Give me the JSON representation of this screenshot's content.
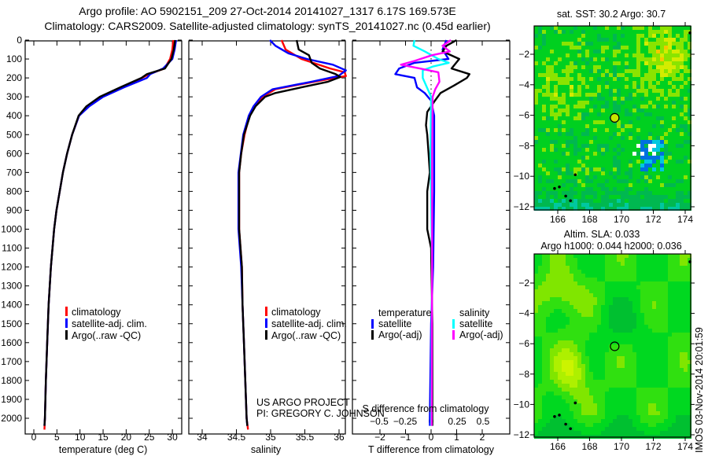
{
  "header": {
    "title_line1": "Argo profile: AO 5902151_209 27-Oct-2014 20141027_1317 6.17S 169.573E",
    "title_line2": "Climatology: CARS2009. Satellite-adjusted climatology: synTS_20141027.nc (0.45d earlier)"
  },
  "credit": {
    "line1": "US ARGO PROJECT",
    "line2": "PI: GREGORY C. JOHNSON"
  },
  "timestamp": "IMOS 03-Nov-2014 20:01:59",
  "colors": {
    "climatology": "#ff0000",
    "satellite": "#0000ff",
    "argo": "#000000",
    "sal_satellite": "#00ffff",
    "sal_argo": "#ff00ff"
  },
  "chart_data": [
    {
      "type": "line",
      "xlabel": "temperature (deg C)",
      "ylabel": "",
      "xlim": [
        -1.9,
        32
      ],
      "ylim": [
        2060,
        0
      ],
      "xticks": [
        "0",
        "5",
        "10",
        "15",
        "20",
        "25",
        "30"
      ],
      "yticks": [
        "0",
        "100",
        "200",
        "300",
        "400",
        "500",
        "600",
        "700",
        "800",
        "900",
        "1000",
        "1100",
        "1200",
        "1300",
        "1400",
        "1500",
        "1600",
        "1700",
        "1800",
        "1900",
        "2000"
      ],
      "legend": [
        "climatology",
        "satellite-adj. clim.",
        "Argo(..raw -QC)"
      ],
      "series": [
        {
          "name": "climatology",
          "color": "#ff0000",
          "depth": [
            0,
            50,
            100,
            150,
            180,
            200,
            250,
            300,
            350,
            400,
            500,
            600,
            700,
            800,
            900,
            1000,
            1200,
            1400,
            1600,
            1800,
            2000,
            2060
          ],
          "values": [
            30.2,
            30.0,
            29.5,
            28.3,
            25.0,
            23.4,
            18.9,
            14.6,
            11.6,
            9.8,
            8.3,
            7.2,
            6.3,
            5.6,
            4.9,
            4.4,
            3.7,
            3.2,
            2.9,
            2.6,
            2.4,
            2.3
          ]
        },
        {
          "name": "satellite-adj. clim.",
          "color": "#0000ff",
          "depth": [
            0,
            50,
            100,
            150,
            180,
            200,
            250,
            300,
            350,
            400,
            500,
            600,
            700,
            800,
            900,
            1000,
            1200,
            1400,
            1600,
            1800,
            2000,
            2040
          ],
          "values": [
            30.8,
            30.5,
            30.0,
            28.0,
            25.2,
            24.5,
            19.5,
            15.0,
            12.0,
            9.8,
            8.3,
            7.2,
            6.3,
            5.6,
            4.9,
            4.4,
            3.7,
            3.2,
            2.9,
            2.6,
            2.4,
            2.3
          ]
        },
        {
          "name": "Argo(..raw -QC)",
          "color": "#000000",
          "depth": [
            0,
            50,
            100,
            150,
            180,
            200,
            250,
            300,
            350,
            400,
            500,
            600,
            700,
            800,
            900,
            1000,
            1200,
            1400,
            1600,
            1800,
            2000,
            2040
          ],
          "values": [
            30.6,
            30.3,
            29.8,
            28.4,
            24.5,
            23.3,
            18.7,
            14.3,
            11.4,
            9.7,
            8.3,
            7.2,
            6.3,
            5.6,
            4.9,
            4.4,
            3.7,
            3.2,
            2.9,
            2.6,
            2.4,
            2.3
          ]
        }
      ]
    },
    {
      "type": "line",
      "xlabel": "salinity",
      "xlim": [
        33.8,
        36.1
      ],
      "ylim": [
        2060,
        0
      ],
      "xticks": [
        "34",
        "34.5",
        "35",
        "35.5",
        "36"
      ],
      "legend": [
        "climatology",
        "satellite-adj. clim.",
        "Argo(..raw -QC)"
      ],
      "series": [
        {
          "name": "climatology",
          "color": "#ff0000",
          "depth": [
            0,
            50,
            100,
            150,
            170,
            190,
            220,
            260,
            300,
            350,
            400,
            500,
            600,
            700,
            1000,
            1200,
            1400,
            1600,
            1800,
            2000,
            2060
          ],
          "values": [
            35.16,
            35.22,
            35.45,
            35.87,
            36.08,
            36.1,
            35.64,
            35.07,
            34.88,
            34.76,
            34.69,
            34.62,
            34.57,
            34.54,
            34.54,
            34.58,
            34.59,
            34.61,
            34.63,
            34.65,
            34.67
          ]
        },
        {
          "name": "satellite-adj. clim.",
          "color": "#0000ff",
          "depth": [
            0,
            30,
            70,
            100,
            130,
            160,
            190,
            220,
            260,
            300,
            350,
            400,
            500,
            700,
            1000,
            1200,
            1400,
            1600,
            1800,
            2000,
            2040
          ],
          "values": [
            34.99,
            35.07,
            35.26,
            35.53,
            35.91,
            36.1,
            35.99,
            35.6,
            35.03,
            34.86,
            34.75,
            34.68,
            34.6,
            34.53,
            34.53,
            34.57,
            34.59,
            34.61,
            34.63,
            34.65,
            34.66
          ]
        },
        {
          "name": "Argo(..raw -QC)",
          "color": "#000000",
          "depth": [
            0,
            50,
            80,
            120,
            150,
            180,
            195,
            220,
            250,
            280,
            300,
            350,
            400,
            500,
            600,
            700,
            1000,
            1200,
            1400,
            1600,
            1800,
            2000,
            2040
          ],
          "values": [
            35.38,
            35.41,
            35.56,
            35.6,
            35.72,
            35.95,
            36.02,
            35.84,
            35.45,
            35.07,
            34.92,
            34.78,
            34.7,
            34.61,
            34.57,
            34.54,
            34.54,
            34.58,
            34.59,
            34.61,
            34.63,
            34.65,
            34.66
          ]
        }
      ]
    },
    {
      "type": "line",
      "xlabel": "T difference from climatology",
      "xlabel2": "S difference from climatology",
      "xlim": [
        -3.1,
        3.1
      ],
      "xlim2": [
        -0.76,
        0.76
      ],
      "ylim": [
        2060,
        0
      ],
      "xticks": [
        "-2",
        "-1",
        "0",
        "1",
        "2"
      ],
      "xticks2": [
        "-0.5",
        "-0.25",
        "0",
        "0.25",
        "0.5"
      ],
      "legend_headers": [
        "temperature",
        "salinity"
      ],
      "legend": [
        "satellite",
        "Argo(-adj)",
        "satellite",
        "Argo(-adj)"
      ],
      "series": [
        {
          "name": "T satellite",
          "color": "#0000ff",
          "depth": [
            0,
            50,
            100,
            120,
            150,
            180,
            200,
            250,
            280,
            320,
            400,
            800,
            1200,
            1500,
            2000,
            2040
          ],
          "values": [
            0.6,
            0.45,
            0.68,
            -0.65,
            -1.25,
            -1.4,
            -0.65,
            -0.55,
            -0.25,
            0,
            0.12,
            0.12,
            0.08,
            0.0,
            -0.05,
            -0.05
          ]
        },
        {
          "name": "T Argo(-adj)",
          "color": "#000000",
          "depth": [
            0,
            30,
            60,
            100,
            150,
            180,
            200,
            240,
            280,
            320,
            380,
            450,
            500,
            600,
            700,
            800,
            1000,
            1100,
            1500,
            2000,
            2040
          ],
          "values": [
            1.0,
            0.6,
            0.45,
            1.1,
            0.8,
            1.5,
            1.4,
            0.9,
            0.37,
            0.15,
            -0.15,
            -0.2,
            -0.15,
            -0.1,
            -0.05,
            -0.15,
            -0.15,
            0,
            0.05,
            0.05,
            0.05
          ]
        },
        {
          "name": "S satellite",
          "color": "#00ffff",
          "depth": [
            0,
            30,
            60,
            100,
            120,
            140,
            160,
            200,
            250,
            300,
            600,
            1200,
            2040
          ],
          "values": [
            -0.16,
            -0.17,
            -0.06,
            0.07,
            0.17,
            0.015,
            -0.08,
            -0.08,
            -0.04,
            0,
            -0.005,
            0.01,
            0.0
          ]
        },
        {
          "name": "S Argo(-adj)",
          "color": "#ff00ff",
          "depth": [
            0,
            30,
            60,
            80,
            110,
            130,
            150,
            170,
            220,
            260,
            300,
            600,
            1200,
            2040
          ],
          "values": [
            0.19,
            0.11,
            0.18,
            0.01,
            -0.16,
            -0.29,
            -0.11,
            0.07,
            0.08,
            0.04,
            0.015,
            0.01,
            0.01,
            0.005
          ]
        }
      ]
    },
    {
      "type": "heatmap",
      "title": "sat. SST: 30.2 Argo: 30.7",
      "xlim": [
        164.5,
        174.35
      ],
      "ylim": [
        -12.2,
        -0.15
      ],
      "xticks": [
        "166",
        "168",
        "170",
        "172",
        "174"
      ],
      "yticks": [
        "-2",
        "-4",
        "-6",
        "-8",
        "-10",
        "-12"
      ],
      "marker": {
        "lon": 169.573,
        "lat": -6.17
      }
    },
    {
      "type": "heatmap",
      "title": "Altim. SLA: 0.033",
      "subtitle": "Argo h1000: 0.044 h2000: 0.036",
      "xlim": [
        164.5,
        174.35
      ],
      "ylim": [
        -12.2,
        -0.15
      ],
      "xticks": [
        "166",
        "168",
        "170",
        "172",
        "174"
      ],
      "yticks": [
        "-2",
        "-4",
        "-6",
        "-8",
        "-10",
        "-12"
      ],
      "marker": {
        "lon": 169.573,
        "lat": -6.17
      }
    }
  ]
}
